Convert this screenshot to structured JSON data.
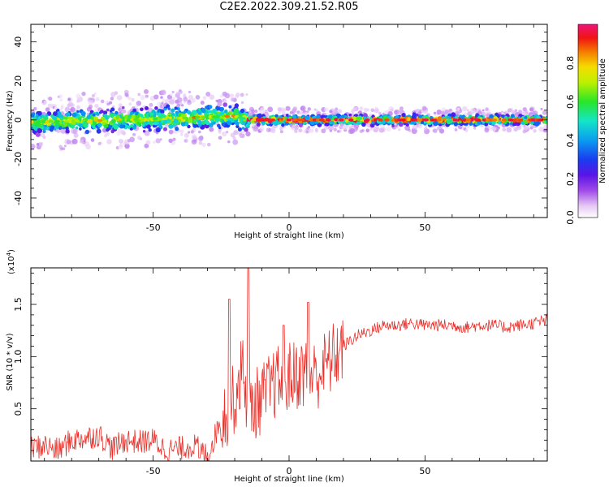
{
  "title": "C2E2.2022.309.21.52.R05",
  "chart_data": [
    {
      "type": "heatmap",
      "xlabel": "Height of straight line (km)",
      "ylabel": "Frequency (Hz)",
      "xlim": [
        -95,
        95
      ],
      "ylim": [
        -50,
        49
      ],
      "xticks": [
        -50,
        0,
        50
      ],
      "yticks": [
        -40,
        -20,
        0,
        20,
        40
      ],
      "colorbar": {
        "label": "Normalized spectral amplitude",
        "range": [
          0.0,
          1.0
        ],
        "ticks": [
          "0.0",
          "0.2",
          "0.4",
          "0.6",
          "0.8"
        ],
        "colormap": "white-purple-blue-cyan-green-yellow-orange-red"
      },
      "ridge": {
        "center_frequency_hz": 0,
        "spread_hz_by_segment": [
          {
            "x_from": -95,
            "x_to": -15,
            "half_width_hz": 6
          },
          {
            "x_from": -15,
            "x_to": 95,
            "half_width_hz": 2.5
          }
        ],
        "frequency_drift_hz": [
          {
            "x": -95,
            "f": -1
          },
          {
            "x": -60,
            "f": 0
          },
          {
            "x": -40,
            "f": 1
          },
          {
            "x": -20,
            "f": 2
          },
          {
            "x": -15,
            "f": 0
          },
          {
            "x": 95,
            "f": 0
          }
        ]
      }
    },
    {
      "type": "line",
      "xlabel": "Height of straight line (km)",
      "ylabel": "SNR (10 * v/v)",
      "y_multiplier_label": "(x10",
      "y_multiplier_exp": "4",
      "y_multiplier_close": ")",
      "xlim": [
        -95,
        95
      ],
      "ylim": [
        0,
        1.85
      ],
      "xticks": [
        -50,
        0,
        50
      ],
      "yticks": [
        0.5,
        1.0,
        1.5
      ],
      "ytick_labels": [
        "0.5",
        "1.0",
        "1.5"
      ],
      "series": [
        {
          "color": "#e8302a",
          "x": [
            -95,
            -90,
            -85,
            -80,
            -75,
            -70,
            -65,
            -60,
            -55,
            -50,
            -45,
            -40,
            -35,
            -30,
            -25,
            -20,
            -17,
            -15,
            -10,
            -5,
            0,
            5,
            10,
            15,
            20,
            25,
            30,
            35,
            40,
            45,
            50,
            55,
            60,
            65,
            70,
            75,
            80,
            85,
            90,
            95
          ],
          "y": [
            0.12,
            0.15,
            0.1,
            0.2,
            0.22,
            0.25,
            0.12,
            0.2,
            0.18,
            0.2,
            0.1,
            0.12,
            0.15,
            0.05,
            0.4,
            0.6,
            0.9,
            0.5,
            0.6,
            0.75,
            0.8,
            0.85,
            0.82,
            0.95,
            1.1,
            1.2,
            1.25,
            1.3,
            1.3,
            1.32,
            1.3,
            1.3,
            1.3,
            1.28,
            1.3,
            1.3,
            1.28,
            1.3,
            1.32,
            1.35
          ]
        }
      ],
      "peaks": [
        {
          "x": -15,
          "y": 1.85
        },
        {
          "x": -22,
          "y": 1.55
        },
        {
          "x": 7,
          "y": 1.52
        },
        {
          "x": -2,
          "y": 1.3
        },
        {
          "x": -33,
          "y": 0.03
        }
      ]
    }
  ]
}
